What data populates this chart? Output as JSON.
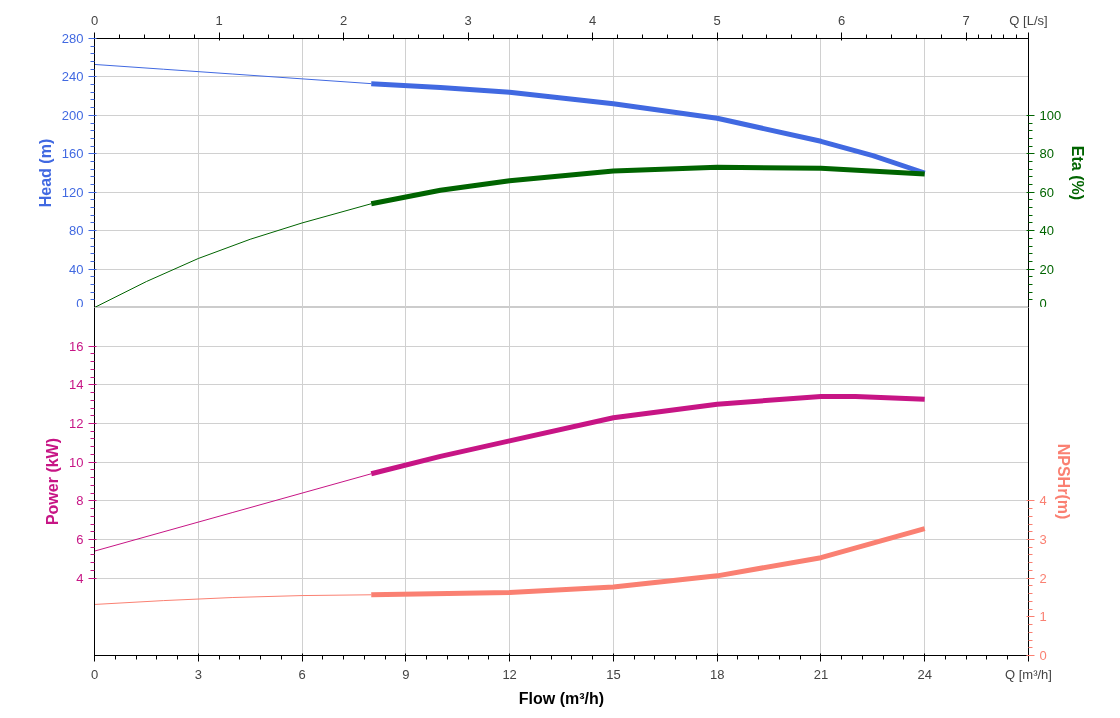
{
  "chart_data": [
    {
      "type": "line",
      "ylabel": "Head (m)",
      "y2label": "Eta (%)",
      "xlim": [
        0,
        27
      ],
      "xticks": [
        0,
        3,
        6,
        9,
        12,
        15,
        18,
        21,
        24,
        27
      ],
      "x2lim": [
        0,
        7.5
      ],
      "x2ticks": [
        0,
        1,
        2,
        3,
        4,
        5,
        6,
        7,
        {
          "value": 7.5,
          "label": "Q [L/s]"
        }
      ],
      "ylim": [
        0,
        280
      ],
      "yticks": [
        0,
        40,
        80,
        120,
        160,
        200,
        240,
        280
      ],
      "y2lim": [
        0,
        140
      ],
      "y2ticks": [
        0,
        20,
        40,
        60,
        80,
        100
      ],
      "grid": true,
      "tick_labels": "y",
      "series": [
        {
          "color": "#4169e1",
          "x": [
            0,
            2,
            4,
            6,
            8
          ],
          "values": [
            253,
            248,
            243,
            238,
            233
          ]
        },
        {
          "color": "#4169e1",
          "x": [
            8,
            10,
            12,
            15,
            18,
            21,
            22.5,
            24
          ],
          "values": [
            233,
            229,
            224,
            212,
            197,
            173,
            158,
            140
          ]
        },
        {
          "color": "#006400",
          "axis": "y2",
          "x": [
            0,
            1.5,
            3,
            4.5,
            6,
            8
          ],
          "values": [
            0,
            13.5,
            25.5,
            35.5,
            44,
            54
          ]
        },
        {
          "color": "#006400",
          "axis": "y2",
          "x": [
            8,
            10,
            12,
            15,
            18,
            21,
            24
          ],
          "values": [
            54,
            61,
            66,
            71,
            73,
            72.5,
            69.5
          ]
        }
      ]
    },
    {
      "type": "line",
      "xlabel": "Flow (m³/h)",
      "xlim": [
        0,
        27
      ],
      "xticks": [
        0,
        3,
        6,
        9,
        12,
        15,
        18,
        21,
        24,
        {
          "value": 27,
          "label": "Q [m³/h]"
        }
      ],
      "ylabel": "Power (kW)",
      "y2label": "NPSHr(m)",
      "ylim": [
        0,
        18
      ],
      "yticks": [
        4,
        6,
        8,
        10,
        12,
        14,
        16
      ],
      "y2lim": [
        0,
        9
      ],
      "y2ticks": [
        0,
        1,
        2,
        3,
        4
      ],
      "grid": true,
      "series": [
        {
          "color": "#c71585",
          "x": [
            0,
            4,
            8
          ],
          "values": [
            5.4,
            7.4,
            9.4
          ]
        },
        {
          "color": "#c71585",
          "x": [
            8,
            10,
            12,
            15,
            18,
            21,
            22,
            24
          ],
          "values": [
            9.4,
            10.3,
            11.1,
            12.3,
            13.0,
            13.4,
            13.4,
            13.25
          ]
        },
        {
          "color": "#fa8072",
          "axis": "y2",
          "x": [
            0,
            2,
            4,
            6,
            8
          ],
          "values": [
            1.32,
            1.42,
            1.5,
            1.55,
            1.57
          ]
        },
        {
          "color": "#fa8072",
          "axis": "y2",
          "x": [
            8,
            12,
            15,
            18,
            21,
            24
          ],
          "values": [
            1.57,
            1.63,
            1.77,
            2.06,
            2.53,
            3.28
          ]
        }
      ]
    }
  ]
}
